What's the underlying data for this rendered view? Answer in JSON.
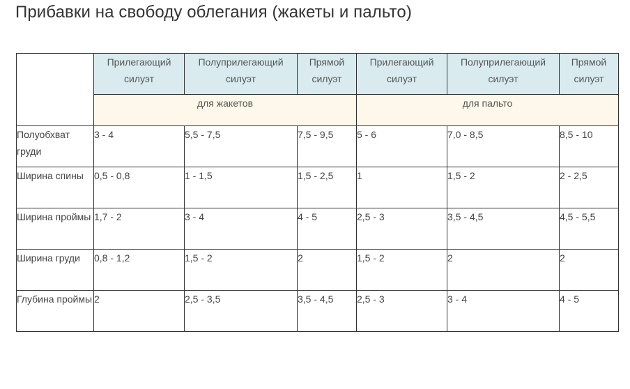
{
  "page": {
    "title": "Прибавки на свободу облегания (жакеты и пальто)"
  },
  "table": {
    "silhouettes": [
      "Прилегающий силуэт",
      "Полуприлегающий силуэт",
      "Прямой силуэт",
      "Прилегающий силуэт",
      "Полуприлегающий силуэт",
      "Прямой силуэт"
    ],
    "groups": [
      "для жакетов",
      "для пальто"
    ],
    "rows": [
      {
        "label": "Полуобхват груди",
        "values": [
          "3 - 4",
          "5,5 - 7,5",
          "7,5 - 9,5",
          "5 - 6",
          "7,0 - 8,5",
          "8,5 - 10"
        ]
      },
      {
        "label": "Ширина спины",
        "values": [
          "0,5 - 0,8",
          "1 - 1,5",
          "1,5 - 2,5",
          "1",
          "1,5 - 2",
          "2 - 2,5"
        ]
      },
      {
        "label": "Ширина проймы",
        "values": [
          "1,7 - 2",
          "3 - 4",
          "4 - 5",
          "2,5 - 3",
          "3,5 - 4,5",
          "4,5 - 5,5"
        ]
      },
      {
        "label": "Ширина груди",
        "values": [
          "0,8 - 1,2",
          "1,5 - 2",
          "2",
          "1,5 - 2",
          "2",
          "2"
        ]
      },
      {
        "label": "Глубина проймы",
        "values": [
          "2",
          "2,5 - 3,5",
          "3,5 - 4,5",
          "2,5 - 3",
          "3 - 4",
          "4 - 5"
        ]
      }
    ]
  },
  "colors": {
    "header_bg": "#d9ebef",
    "group_bg": "#fdf8ea",
    "border": "#333333",
    "text": "#444444"
  }
}
